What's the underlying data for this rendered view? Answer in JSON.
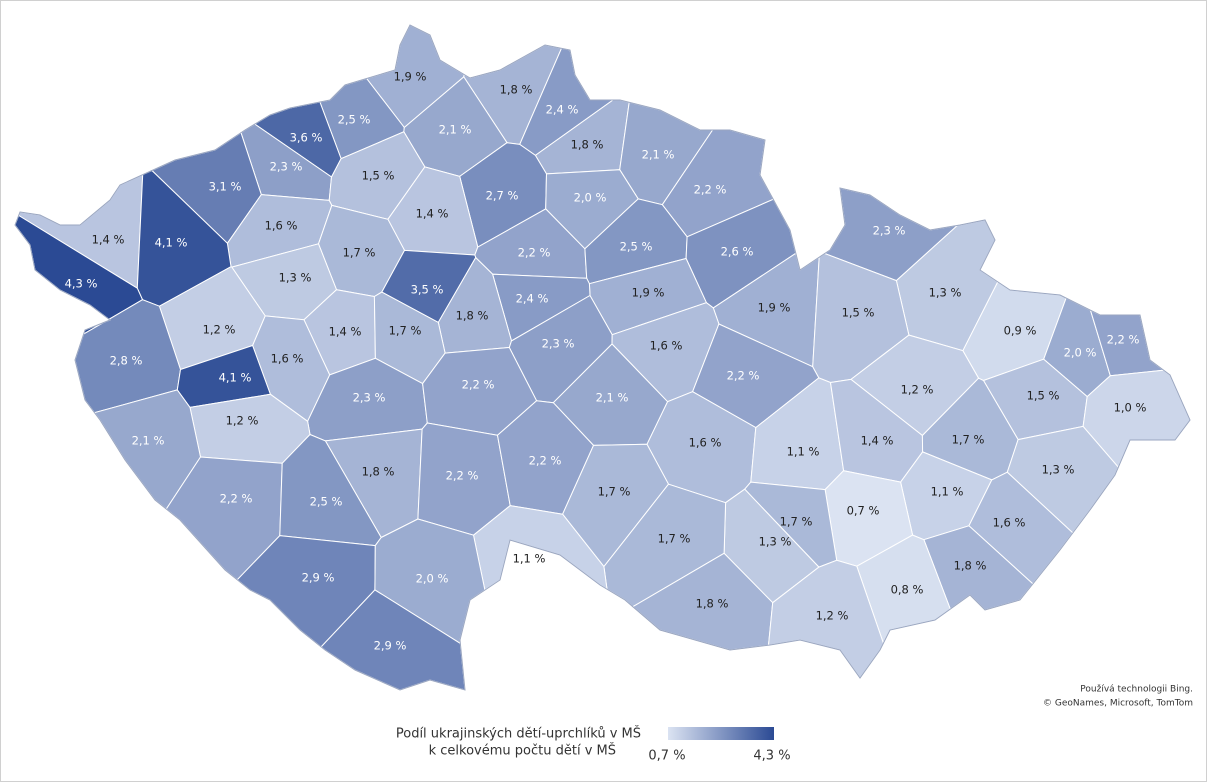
{
  "chart_data": {
    "type": "choropleth",
    "values": [
      1.9,
      1.8,
      2.4,
      2.5,
      3.6,
      2.1,
      1.8,
      2.1,
      2.3,
      1.5,
      3.1,
      2.7,
      2.0,
      2.2,
      1.4,
      1.6,
      1.4,
      4.1,
      2.3,
      1.7,
      2.2,
      2.5,
      2.6,
      1.3,
      4.3,
      3.5,
      1.9,
      1.3,
      2.4,
      1.8,
      1.2,
      1.4,
      1.7,
      1.9,
      1.5,
      0.9,
      2.0,
      2.2,
      2.8,
      1.6,
      2.3,
      1.6,
      4.1,
      2.2,
      1.2,
      1.5,
      1.0,
      2.3,
      2.2,
      2.1,
      1.2,
      2.1,
      1.6,
      1.1,
      1.4,
      1.7,
      1.8,
      2.2,
      2.2,
      1.3,
      1.7,
      2.2,
      2.5,
      1.1,
      0.7,
      1.7,
      1.3,
      1.6,
      1.7,
      1.1,
      1.8,
      2.9,
      2.0,
      0.8,
      1.8,
      1.2,
      2.9
    ],
    "value_labels": [
      "1,9 %",
      "1,8 %",
      "2,4 %",
      "2,5 %",
      "3,6 %",
      "2,1 %",
      "1,8 %",
      "2,1 %",
      "2,3 %",
      "1,5 %",
      "3,1 %",
      "2,7 %",
      "2,0 %",
      "2,2 %",
      "1,4 %",
      "1,6 %",
      "1,4 %",
      "4,1 %",
      "2,3 %",
      "1,7 %",
      "2,2 %",
      "2,5 %",
      "2,6 %",
      "1,3 %",
      "4,3 %",
      "3,5 %",
      "1,9 %",
      "1,3 %",
      "2,4 %",
      "1,8 %",
      "1,2 %",
      "1,4 %",
      "1,7 %",
      "1,9 %",
      "1,5 %",
      "0,9 %",
      "2,0 %",
      "2,2 %",
      "2,8 %",
      "1,6 %",
      "2,3 %",
      "1,6 %",
      "4,1 %",
      "2,2 %",
      "1,2 %",
      "1,5 %",
      "1,0 %",
      "2,3 %",
      "2,2 %",
      "2,1 %",
      "1,2 %",
      "2,1 %",
      "1,6 %",
      "1,1 %",
      "1,4 %",
      "1,7 %",
      "1,8 %",
      "2,2 %",
      "2,2 %",
      "1,3 %",
      "1,7 %",
      "2,2 %",
      "2,5 %",
      "1,1 %",
      "0,7 %",
      "1,7 %",
      "1,3 %",
      "1,6 %",
      "1,7 %",
      "1,1 %",
      "1,8 %",
      "2,9 %",
      "2,0 %",
      "0,8 %",
      "1,8 %",
      "1,2 %",
      "2,9 %"
    ],
    "color_range": [
      "#dbe3f2",
      "#2b4a94"
    ],
    "legend": {
      "title": [
        "Podíl ukrajinských dětí-uprchlíků v MŠ",
        "k celkovému počtu dětí v MŠ"
      ],
      "min": {
        "value": 0.7,
        "label": "0,7 %"
      },
      "max": {
        "value": 4.3,
        "label": "4,3 %"
      }
    },
    "attribution": [
      "Používá technologii Bing.",
      "© GeoNames, Microsoft, TomTom"
    ]
  }
}
